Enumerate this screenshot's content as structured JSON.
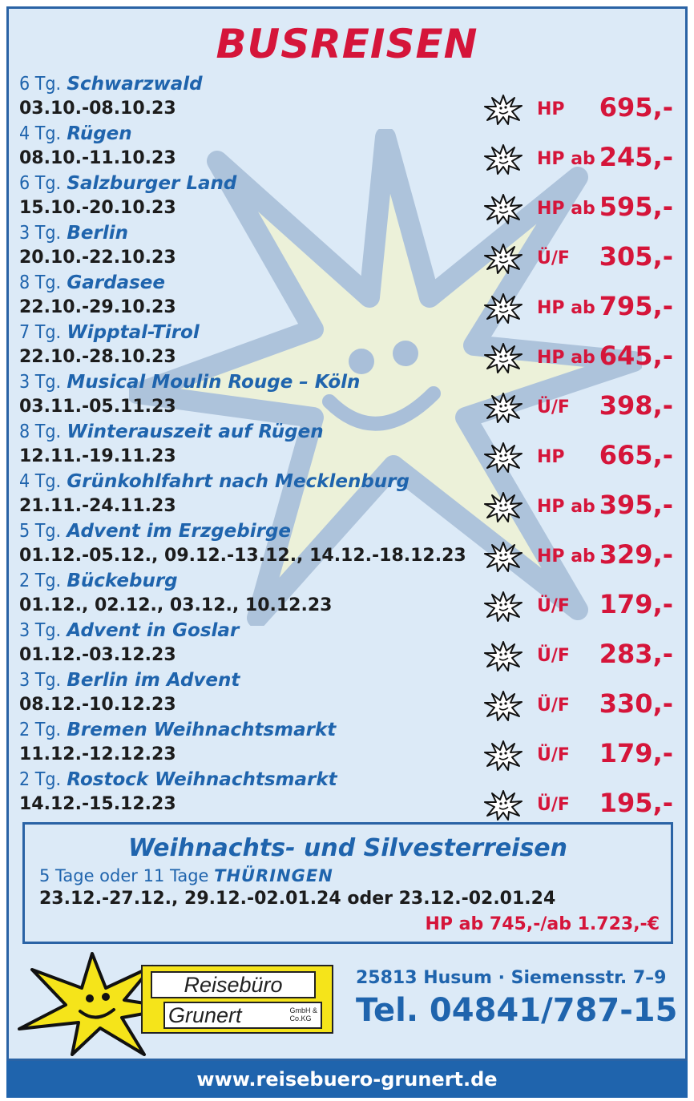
{
  "title": "BUSREISEN",
  "trips": [
    {
      "days": "6 Tg.",
      "name": "Schwarzwald",
      "dates": "03.10.-08.10.23",
      "board": "HP",
      "price": "695,-"
    },
    {
      "days": "4 Tg.",
      "name": "Rügen",
      "dates": "08.10.-11.10.23",
      "board": "HP ab",
      "price": "245,-"
    },
    {
      "days": "6 Tg.",
      "name": "Salzburger Land",
      "dates": "15.10.-20.10.23",
      "board": "HP ab",
      "price": "595,-"
    },
    {
      "days": "3 Tg.",
      "name": "Berlin",
      "dates": "20.10.-22.10.23",
      "board": "Ü/F",
      "price": "305,-"
    },
    {
      "days": "8 Tg.",
      "name": "Gardasee",
      "dates": "22.10.-29.10.23",
      "board": "HP ab",
      "price": "795,-"
    },
    {
      "days": "7 Tg.",
      "name": "Wipptal-Tirol",
      "dates": "22.10.-28.10.23",
      "board": "HP ab",
      "price": "645,-"
    },
    {
      "days": "3 Tg.",
      "name": "Musical Moulin Rouge – Köln",
      "dates": "03.11.-05.11.23",
      "board": "Ü/F",
      "price": "398,-"
    },
    {
      "days": "8 Tg.",
      "name": "Winterauszeit auf Rügen",
      "dates": "12.11.-19.11.23",
      "board": "HP",
      "price": "665,-"
    },
    {
      "days": "4 Tg.",
      "name": "Grünkohlfahrt nach Mecklenburg",
      "dates": "21.11.-24.11.23",
      "board": "HP ab",
      "price": "395,-"
    },
    {
      "days": "5 Tg.",
      "name": "Advent im Erzgebirge",
      "dates": "01.12.-05.12., 09.12.-13.12., 14.12.-18.12.23",
      "board": "HP ab",
      "price": "329,-"
    },
    {
      "days": "2 Tg.",
      "name": "Bückeburg",
      "dates": "01.12., 02.12., 03.12., 10.12.23",
      "board": "Ü/F",
      "price": "179,-"
    },
    {
      "days": "3 Tg.",
      "name": "Advent in Goslar",
      "dates": "01.12.-03.12.23",
      "board": "Ü/F",
      "price": "283,-"
    },
    {
      "days": "3 Tg.",
      "name": "Berlin im Advent",
      "dates": "08.12.-10.12.23",
      "board": "Ü/F",
      "price": "330,-"
    },
    {
      "days": "2 Tg.",
      "name": "Bremen Weihnachtsmarkt",
      "dates": "11.12.-12.12.23",
      "board": "Ü/F",
      "price": "179,-"
    },
    {
      "days": "2 Tg.",
      "name": "Rostock Weihnachtsmarkt",
      "dates": "14.12.-15.12.23",
      "board": "Ü/F",
      "price": "195,-"
    }
  ],
  "xmas": {
    "title": "Weihnachts- und Silvesterreisen",
    "duration": "5 Tage oder 11 Tage",
    "destination": "THÜRINGEN",
    "dates": "23.12.-27.12., 29.12.-02.01.24 oder 23.12.-02.01.24",
    "price": "HP ab 745,-/ab 1.723,-€"
  },
  "logo": {
    "line1": "Reisebüro",
    "line2": "Grunert",
    "legal_1": "GmbH &",
    "legal_2": "Co.KG"
  },
  "contact": {
    "address": "25813 Husum · Siemensstr. 7–9",
    "phone": "Tel. 04841/787-15"
  },
  "footer": {
    "website": "www.reisebuero-grunert.de"
  },
  "colors": {
    "accent_red": "#d5153a",
    "brand_blue": "#1f64ad",
    "background": "#dceaf7",
    "logo_yellow": "#f5e41a"
  }
}
